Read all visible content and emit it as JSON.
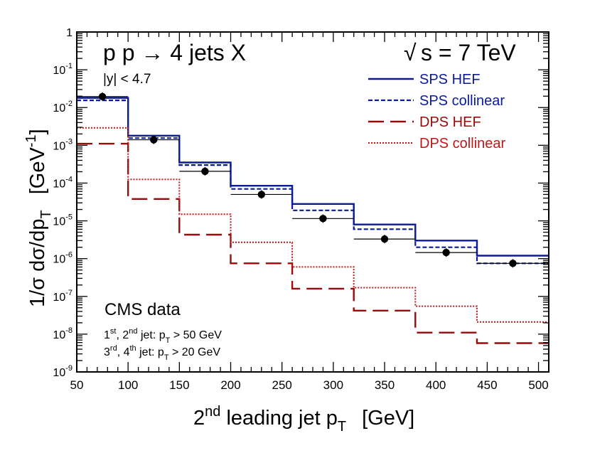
{
  "chart_data": {
    "type": "line",
    "title_left": "p p → 4 jets X",
    "title_right_symbol": "√",
    "title_right": "s = 7 TeV",
    "ylabel_main": "1/σ  dσ/dp",
    "ylabel_sub": "T",
    "ylabel_unit": "[GeV",
    "ylabel_unit_sup": "-1",
    "ylabel_unit_close": "]",
    "xlabel_pre": "2",
    "xlabel_sup": "nd",
    "xlabel_mid": " leading jet p",
    "xlabel_sub": "T",
    "xlabel_unit": "[GeV]",
    "x_axis": {
      "range": [
        50,
        510
      ],
      "ticks": [
        50,
        100,
        150,
        200,
        250,
        300,
        350,
        400,
        450,
        500
      ],
      "tick_labels": [
        "50",
        "100",
        "150",
        "200",
        "250",
        "300",
        "350",
        "400",
        "450",
        "500"
      ]
    },
    "y_axis": {
      "scale": "log",
      "range": [
        1e-09,
        1
      ],
      "decades": [
        {
          "value": 1e-09,
          "base": "10",
          "exp": "-9"
        },
        {
          "value": 1e-08,
          "base": "10",
          "exp": "-8"
        },
        {
          "value": 1e-07,
          "base": "10",
          "exp": "-7"
        },
        {
          "value": 1e-06,
          "base": "10",
          "exp": "-6"
        },
        {
          "value": 1e-05,
          "base": "10",
          "exp": "-5"
        },
        {
          "value": 0.0001,
          "base": "10",
          "exp": "-4"
        },
        {
          "value": 0.001,
          "base": "10",
          "exp": "-3"
        },
        {
          "value": 0.01,
          "base": "10",
          "exp": "-2"
        },
        {
          "value": 0.1,
          "base": "10",
          "exp": "-1"
        },
        {
          "value": 1,
          "base": "1",
          "exp": ""
        }
      ]
    },
    "bin_edges": [
      50,
      100,
      150,
      200,
      260,
      320,
      380,
      440,
      510
    ],
    "series": [
      {
        "name": "SPS HEF",
        "color": "#0a1a9a",
        "style": "solid",
        "values": [
          0.018,
          0.0018,
          0.00035,
          8.5e-05,
          2.8e-05,
          8e-06,
          3e-06,
          1.2e-06
        ]
      },
      {
        "name": "SPS collinear",
        "color": "#0a1a9a",
        "style": "dashed",
        "values": [
          0.0155,
          0.00155,
          0.0003,
          7e-05,
          1.9e-05,
          6e-06,
          2e-06,
          7.5e-07
        ]
      },
      {
        "name": "DPS HEF",
        "color": "#9a0a0a",
        "style": "longdash",
        "values": [
          0.0011,
          3.8e-05,
          4.3e-06,
          7.5e-07,
          1.6e-07,
          4.2e-08,
          1.1e-08,
          5.8e-09
        ]
      },
      {
        "name": "DPS collinear",
        "color": "#c01818",
        "style": "dotted",
        "values": [
          0.0029,
          0.000125,
          1.5e-05,
          2.7e-06,
          6e-07,
          1.7e-07,
          5.5e-08,
          2.1e-08
        ]
      }
    ],
    "data_series": {
      "name": "CMS data",
      "points": [
        {
          "x": 75,
          "y": 0.0195
        },
        {
          "x": 125,
          "y": 0.0014
        },
        {
          "x": 175,
          "y": 0.000205
        },
        {
          "x": 230,
          "y": 5e-05
        },
        {
          "x": 290,
          "y": 1.15e-05
        },
        {
          "x": 350,
          "y": 3.3e-06
        },
        {
          "x": 410,
          "y": 1.45e-06
        },
        {
          "x": 475,
          "y": 7.5e-07
        }
      ]
    },
    "annotations": {
      "rapidity_cut": "|y| < 4.7",
      "data_label": "CMS data",
      "cut1_a": "1",
      "cut1_a_sup": "st",
      "cut1_b": ", 2",
      "cut1_b_sup": "nd",
      "cut1_c": " jet: p",
      "cut1_c_sub": "T",
      "cut1_d": " > 50 GeV",
      "cut2_a": "3",
      "cut2_a_sup": "rd",
      "cut2_b": ", 4",
      "cut2_b_sup": "th",
      "cut2_c": " jet: p",
      "cut2_c_sub": "T",
      "cut2_d": " > 20 GeV"
    },
    "legend_position": "top-right",
    "grid": false
  }
}
